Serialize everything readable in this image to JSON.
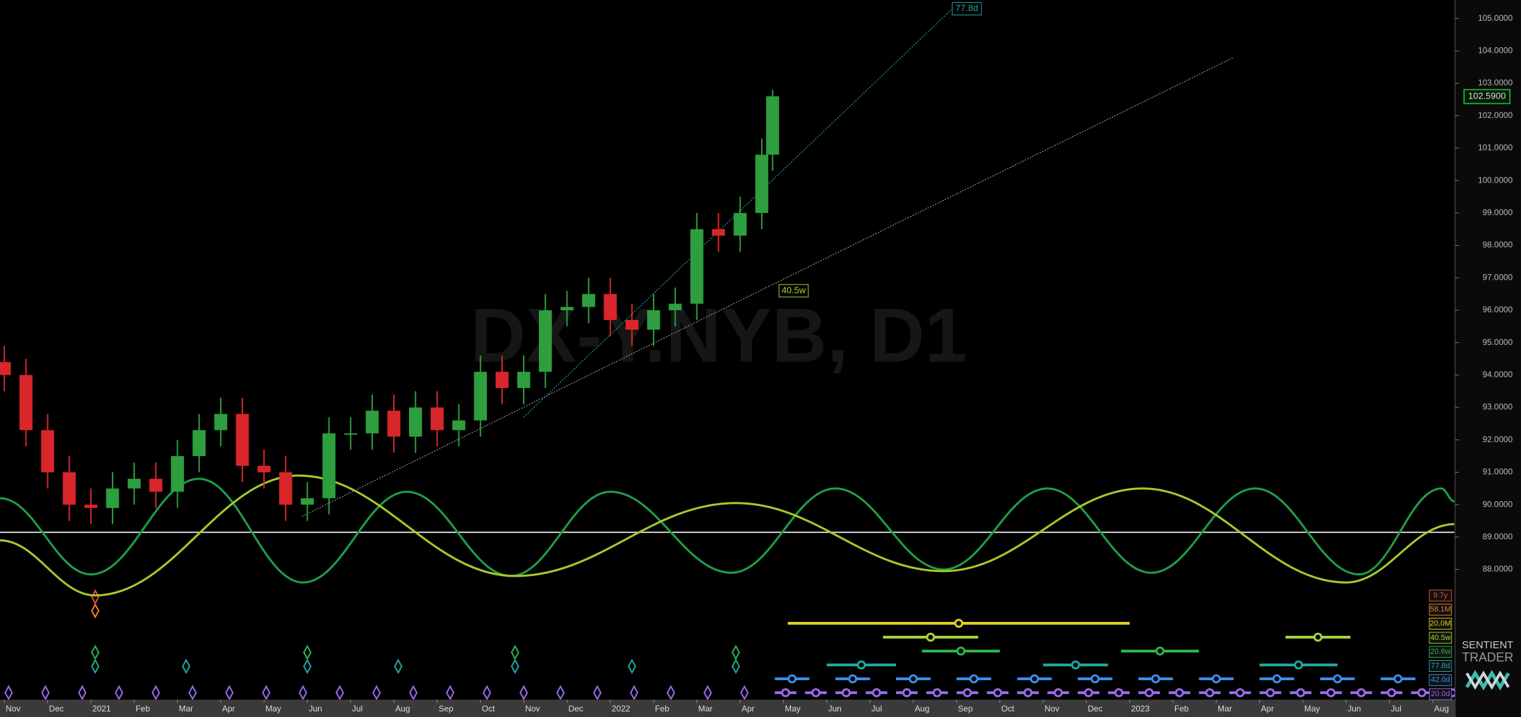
{
  "chart_data": {
    "type": "candlestick",
    "watermark": "DX-Y.NYB, D1",
    "categories": [
      "Nov",
      "Dec",
      "2021",
      "Feb",
      "Mar",
      "Apr",
      "May",
      "Jun",
      "Jul",
      "Aug",
      "Sep",
      "Oct",
      "Nov",
      "Dec",
      "2022",
      "Feb",
      "Mar",
      "Apr",
      "May",
      "Jun",
      "Jul",
      "Aug",
      "Sep",
      "Oct",
      "Nov",
      "Dec",
      "2023",
      "Feb",
      "Mar",
      "Apr",
      "May",
      "Jun",
      "Jul",
      "Aug"
    ],
    "xlim": [
      -0.1,
      33.5
    ],
    "ylim": [
      84.05,
      105.57
    ],
    "yticks": [
      {
        "value": 88,
        "label": "88.0000"
      },
      {
        "value": 89,
        "label": "89.0000"
      },
      {
        "value": 90,
        "label": "90.0000"
      },
      {
        "value": 91,
        "label": "91.0000"
      },
      {
        "value": 92,
        "label": "92.0000"
      },
      {
        "value": 93,
        "label": "93.0000"
      },
      {
        "value": 94,
        "label": "94.0000"
      },
      {
        "value": 95,
        "label": "95.0000"
      },
      {
        "value": 96,
        "label": "96.0000"
      },
      {
        "value": 97,
        "label": "97.0000"
      },
      {
        "value": 98,
        "label": "98.0000"
      },
      {
        "value": 99,
        "label": "99.0000"
      },
      {
        "value": 100,
        "label": "100.0000"
      },
      {
        "value": 101,
        "label": "101.0000"
      },
      {
        "value": 102,
        "label": "102.0000"
      },
      {
        "value": 103,
        "label": "103.0000"
      },
      {
        "value": 104,
        "label": "104.0000"
      },
      {
        "value": 105,
        "label": "105.0000"
      }
    ],
    "up_color": "#2e9e3e",
    "down_color": "#d9262b",
    "x": [
      0,
      0.5,
      1,
      1.5,
      2,
      2.5,
      3,
      3.5,
      4,
      4.5,
      5,
      5.5,
      6,
      6.5,
      7,
      7.5,
      8,
      8.5,
      9,
      9.5,
      10,
      10.5,
      11,
      11.5,
      12,
      12.5,
      13,
      13.5,
      14,
      14.5,
      15,
      15.5,
      16,
      16.5,
      17,
      17.5,
      17.75
    ],
    "open": [
      94.4,
      94.0,
      92.3,
      91.0,
      90.0,
      89.9,
      90.5,
      90.8,
      90.4,
      91.5,
      92.3,
      92.8,
      91.2,
      91.0,
      90.0,
      90.2,
      92.2,
      92.2,
      92.9,
      92.1,
      93.0,
      92.3,
      92.6,
      94.1,
      93.6,
      94.1,
      96.0,
      96.1,
      96.5,
      95.7,
      95.4,
      96.0,
      96.2,
      98.5,
      98.3,
      99.0,
      100.8
    ],
    "high": [
      94.9,
      94.5,
      92.8,
      91.5,
      90.5,
      91.0,
      91.3,
      91.3,
      92.0,
      92.8,
      93.3,
      93.3,
      91.7,
      91.5,
      90.7,
      92.7,
      92.7,
      93.4,
      93.4,
      93.5,
      93.5,
      93.1,
      94.6,
      94.6,
      94.6,
      96.5,
      96.6,
      97.0,
      97.0,
      96.2,
      96.5,
      96.7,
      99.0,
      99.0,
      99.5,
      101.3,
      102.8
    ],
    "low": [
      93.5,
      91.8,
      90.5,
      89.5,
      89.4,
      89.4,
      90.0,
      89.9,
      89.9,
      91.0,
      91.8,
      90.7,
      90.5,
      89.5,
      89.5,
      89.7,
      91.7,
      91.7,
      91.6,
      91.6,
      91.8,
      91.8,
      92.1,
      93.1,
      93.1,
      93.6,
      95.5,
      95.6,
      95.2,
      94.9,
      94.9,
      95.5,
      95.7,
      97.8,
      97.8,
      98.5,
      100.3
    ],
    "close": [
      94.0,
      92.3,
      91.0,
      90.0,
      89.9,
      90.5,
      90.8,
      90.4,
      91.5,
      92.3,
      92.8,
      91.2,
      91.0,
      90.0,
      90.2,
      92.2,
      92.2,
      92.9,
      92.1,
      93.0,
      92.3,
      92.6,
      94.1,
      93.6,
      94.1,
      96.0,
      96.1,
      96.5,
      95.7,
      95.4,
      96.0,
      96.2,
      98.5,
      98.3,
      99.0,
      100.8,
      102.6
    ],
    "last_price": {
      "value": 102.59,
      "label": "102.5900",
      "color": "#1f9e2e"
    },
    "hline": {
      "value": 89.15,
      "color": "#cfcfcf"
    },
    "cycles": [
      {
        "color": "#1f9e4a",
        "x": [
          -0.1,
          2.0,
          4.5,
          6.9,
          9.3,
          11.7,
          14.0,
          16.8,
          19.2,
          21.7,
          24.1,
          26.5,
          28.9,
          31.3,
          33.2,
          33.5
        ],
        "values": [
          90.2,
          87.85,
          90.8,
          87.6,
          90.4,
          87.8,
          90.4,
          87.9,
          90.5,
          88.0,
          90.5,
          87.9,
          90.5,
          87.85,
          90.5,
          90.1
        ]
      },
      {
        "color": "#a6c92a",
        "x": [
          -0.1,
          2.1,
          6.8,
          11.8,
          16.9,
          21.7,
          26.3,
          31.0,
          33.5
        ],
        "values": [
          88.9,
          87.2,
          90.9,
          87.8,
          90.05,
          87.95,
          90.5,
          87.6,
          89.4
        ]
      }
    ],
    "trendlines": [
      {
        "color": "#9a9a9a",
        "x": [
          6.88,
          28.4
        ],
        "values": [
          89.64,
          103.8
        ]
      },
      {
        "color": "#1fa7a0",
        "x": [
          12.0,
          21.9
        ],
        "values": [
          92.7,
          105.3
        ]
      }
    ],
    "annotations": [
      {
        "text": "77.8d",
        "x": 21.9,
        "y": 105.3,
        "color": "#1fa7a0"
      },
      {
        "text": "40.5w",
        "x": 17.9,
        "y": 96.6,
        "color": "#a6d23a"
      }
    ],
    "legend": [
      {
        "name": "9.7y",
        "color": "#e84a3a"
      },
      {
        "name": "58.1M",
        "color": "#f07f2a"
      },
      {
        "name": "20.0M",
        "color": "#e0d020"
      },
      {
        "name": "40.5w",
        "color": "#a6d23a"
      },
      {
        "name": "20.6w",
        "color": "#2fb34f"
      },
      {
        "name": "77.8d",
        "color": "#1fa7a0"
      },
      {
        "name": "42.0d",
        "color": "#3a8fe8"
      },
      {
        "name": "20.0d",
        "color": "#9a6ae8"
      }
    ],
    "logo": [
      "SENTIENT",
      "TRADER"
    ]
  }
}
